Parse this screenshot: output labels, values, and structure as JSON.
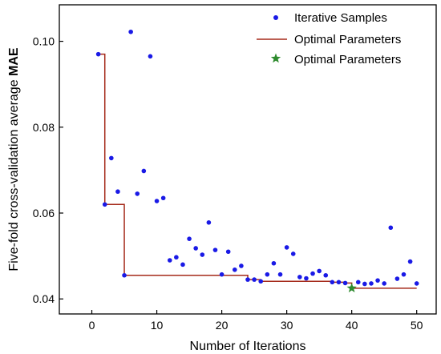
{
  "chart_data": {
    "type": "scatter",
    "xlabel": "Number of Iterations",
    "ylabel": "Five-fold cross-validation average ",
    "ylabel_bold": "MAE",
    "xlim": [
      -5,
      53
    ],
    "ylim": [
      0.0365,
      0.1085
    ],
    "xticks": [
      0,
      10,
      20,
      30,
      40,
      50
    ],
    "xtick_labels": [
      "0",
      "10",
      "20",
      "30",
      "40",
      "50"
    ],
    "yticks": [
      0.04,
      0.06,
      0.08,
      0.1
    ],
    "ytick_labels": [
      "0.04",
      "0.06",
      "0.08",
      "0.10"
    ],
    "grid": false,
    "legend_position": "top-right",
    "colors": {
      "samples": "#1a1ae6",
      "optimal_line": "#a52a1a",
      "optimal_star": "#2e8b2e"
    },
    "series": [
      {
        "name": "Iterative Samples",
        "kind": "scatter",
        "x": [
          1,
          2,
          3,
          4,
          5,
          6,
          7,
          8,
          9,
          10,
          11,
          12,
          13,
          14,
          15,
          16,
          17,
          18,
          19,
          20,
          21,
          22,
          23,
          24,
          25,
          26,
          27,
          28,
          29,
          30,
          31,
          32,
          33,
          34,
          35,
          36,
          37,
          38,
          39,
          40,
          41,
          42,
          43,
          44,
          45,
          46,
          47,
          48,
          49,
          50
        ],
        "y": [
          0.097,
          0.062,
          0.0728,
          0.065,
          0.0455,
          0.1022,
          0.0645,
          0.0698,
          0.0965,
          0.0628,
          0.0635,
          0.049,
          0.0497,
          0.048,
          0.054,
          0.0518,
          0.0503,
          0.0578,
          0.0514,
          0.0457,
          0.051,
          0.0468,
          0.0477,
          0.0445,
          0.0445,
          0.0441,
          0.0457,
          0.0483,
          0.0457,
          0.052,
          0.0505,
          0.0451,
          0.0448,
          0.0459,
          0.0465,
          0.0455,
          0.0439,
          0.0439,
          0.0437,
          0.0425,
          0.0439,
          0.0435,
          0.0436,
          0.0443,
          0.0436,
          0.0566,
          0.0447,
          0.0457,
          0.0487,
          0.0436
        ]
      },
      {
        "name": "Optimal Parameters",
        "kind": "step-line",
        "x": [
          1,
          2,
          3,
          4,
          5,
          6,
          7,
          8,
          9,
          10,
          11,
          12,
          13,
          14,
          15,
          16,
          17,
          18,
          19,
          20,
          21,
          22,
          23,
          24,
          25,
          26,
          27,
          28,
          29,
          30,
          31,
          32,
          33,
          34,
          35,
          36,
          37,
          38,
          39,
          40,
          41,
          42,
          43,
          44,
          45,
          46,
          47,
          48,
          49,
          50
        ],
        "y": [
          0.097,
          0.062,
          0.062,
          0.062,
          0.0455,
          0.0455,
          0.0455,
          0.0455,
          0.0455,
          0.0455,
          0.0455,
          0.0455,
          0.0455,
          0.0455,
          0.0455,
          0.0455,
          0.0455,
          0.0455,
          0.0455,
          0.0455,
          0.0455,
          0.0455,
          0.0455,
          0.0445,
          0.0445,
          0.0441,
          0.0441,
          0.0441,
          0.0441,
          0.0441,
          0.0441,
          0.0441,
          0.0441,
          0.0441,
          0.0441,
          0.0441,
          0.0439,
          0.0439,
          0.0437,
          0.0425,
          0.0425,
          0.0425,
          0.0425,
          0.0425,
          0.0425,
          0.0425,
          0.0425,
          0.0425,
          0.0425,
          0.0425
        ]
      },
      {
        "name": "Optimal Parameters",
        "kind": "star",
        "x": [
          40
        ],
        "y": [
          0.0425
        ]
      }
    ]
  }
}
